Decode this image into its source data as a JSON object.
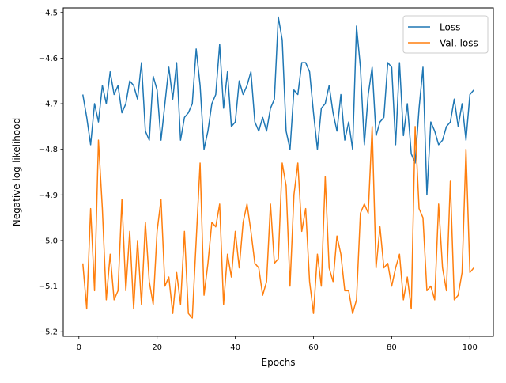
{
  "chart_data": {
    "type": "line",
    "title": "",
    "xlabel": "Epochs",
    "ylabel": "Negative log-likelihood",
    "xlim": [
      -4,
      106
    ],
    "ylim": [
      -5.21,
      -4.49
    ],
    "xticks": [
      0,
      20,
      40,
      60,
      80,
      100
    ],
    "yticks": [
      -5.2,
      -5.1,
      -5.0,
      -4.9,
      -4.8,
      -4.7,
      -4.6,
      -4.5
    ],
    "ytick_labels": [
      "−5.2",
      "−5.1",
      "−5.0",
      "−4.9",
      "−4.8",
      "−4.7",
      "−4.6",
      "−4.5"
    ],
    "grid": false,
    "legend_position": "top-right",
    "x": [
      1,
      2,
      3,
      4,
      5,
      6,
      7,
      8,
      9,
      10,
      11,
      12,
      13,
      14,
      15,
      16,
      17,
      18,
      19,
      20,
      21,
      22,
      23,
      24,
      25,
      26,
      27,
      28,
      29,
      30,
      31,
      32,
      33,
      34,
      35,
      36,
      37,
      38,
      39,
      40,
      41,
      42,
      43,
      44,
      45,
      46,
      47,
      48,
      49,
      50,
      51,
      52,
      53,
      54,
      55,
      56,
      57,
      58,
      59,
      60,
      61,
      62,
      63,
      64,
      65,
      66,
      67,
      68,
      69,
      70,
      71,
      72,
      73,
      74,
      75,
      76,
      77,
      78,
      79,
      80,
      81,
      82,
      83,
      84,
      85,
      86,
      87,
      88,
      89,
      90,
      91,
      92,
      93,
      94,
      95,
      96,
      97,
      98,
      99,
      100,
      101
    ],
    "series": [
      {
        "name": "Loss",
        "color": "#1f77b4",
        "values": [
          -4.68,
          -4.73,
          -4.79,
          -4.7,
          -4.74,
          -4.66,
          -4.7,
          -4.63,
          -4.68,
          -4.66,
          -4.72,
          -4.7,
          -4.65,
          -4.66,
          -4.69,
          -4.61,
          -4.76,
          -4.78,
          -4.64,
          -4.67,
          -4.78,
          -4.7,
          -4.62,
          -4.69,
          -4.61,
          -4.78,
          -4.73,
          -4.72,
          -4.7,
          -4.58,
          -4.66,
          -4.8,
          -4.76,
          -4.7,
          -4.68,
          -4.57,
          -4.71,
          -4.63,
          -4.75,
          -4.74,
          -4.65,
          -4.68,
          -4.66,
          -4.63,
          -4.74,
          -4.76,
          -4.73,
          -4.76,
          -4.71,
          -4.69,
          -4.51,
          -4.56,
          -4.76,
          -4.8,
          -4.67,
          -4.68,
          -4.61,
          -4.61,
          -4.63,
          -4.72,
          -4.8,
          -4.71,
          -4.7,
          -4.66,
          -4.72,
          -4.76,
          -4.68,
          -4.78,
          -4.74,
          -4.8,
          -4.53,
          -4.62,
          -4.79,
          -4.68,
          -4.62,
          -4.77,
          -4.74,
          -4.73,
          -4.61,
          -4.62,
          -4.79,
          -4.61,
          -4.77,
          -4.7,
          -4.81,
          -4.83,
          -4.71,
          -4.62,
          -4.9,
          -4.74,
          -4.76,
          -4.79,
          -4.78,
          -4.75,
          -4.74,
          -4.69,
          -4.75,
          -4.7,
          -4.78,
          -4.68,
          -4.67
        ]
      },
      {
        "name": "Val. loss",
        "color": "#ff7f0e",
        "values": [
          -5.05,
          -5.15,
          -4.93,
          -5.11,
          -4.78,
          -4.93,
          -5.13,
          -5.03,
          -5.13,
          -5.11,
          -4.91,
          -5.11,
          -4.98,
          -5.15,
          -5.0,
          -5.14,
          -4.96,
          -5.09,
          -5.14,
          -4.98,
          -4.91,
          -5.1,
          -5.08,
          -5.16,
          -5.07,
          -5.14,
          -4.98,
          -5.16,
          -5.17,
          -5.0,
          -4.83,
          -5.12,
          -5.05,
          -4.96,
          -4.97,
          -4.92,
          -5.14,
          -5.03,
          -5.08,
          -4.98,
          -5.06,
          -4.96,
          -4.92,
          -4.98,
          -5.05,
          -5.06,
          -5.12,
          -5.09,
          -4.92,
          -5.05,
          -5.04,
          -4.83,
          -4.88,
          -5.1,
          -4.9,
          -4.83,
          -4.98,
          -4.93,
          -5.09,
          -5.16,
          -5.03,
          -5.1,
          -4.86,
          -5.06,
          -5.09,
          -4.99,
          -5.03,
          -5.11,
          -5.11,
          -5.16,
          -5.13,
          -4.94,
          -4.92,
          -4.94,
          -4.75,
          -5.06,
          -4.97,
          -5.06,
          -5.05,
          -5.1,
          -5.06,
          -5.03,
          -5.13,
          -5.08,
          -5.15,
          -4.75,
          -4.93,
          -4.95,
          -5.11,
          -5.1,
          -5.13,
          -4.92,
          -5.06,
          -5.11,
          -4.87,
          -5.13,
          -5.12,
          -5.07,
          -4.8,
          -5.07,
          -5.06
        ]
      }
    ]
  }
}
